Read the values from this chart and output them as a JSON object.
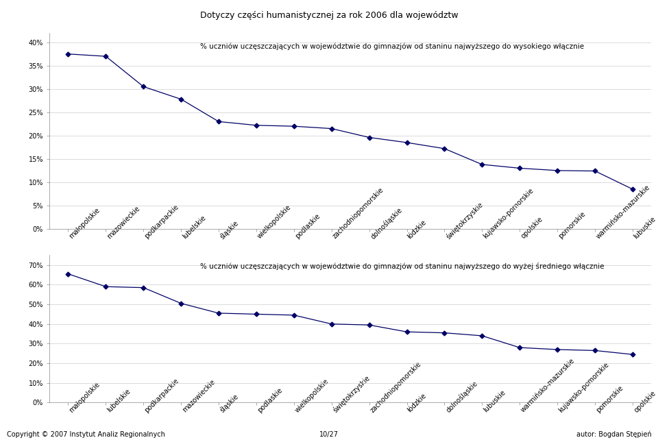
{
  "title": "Dotyczy części humanistycznej za rok 2006 dla województw",
  "chart1": {
    "label": "% uczniów uczęszczających w województwie do gimnazjów od staninu najwyższego do wysokiego włącznie",
    "categories": [
      "małopolskie",
      "mazowieckie",
      "podkarpackie",
      "lubelskie",
      "śląskie",
      "wielkopolskie",
      "podlaskie",
      "zachodniopomorskie",
      "dolnośląskie",
      "łódzkie",
      "świętokrzyskie",
      "kujawsko-pomorskie",
      "opolskie",
      "pomorskie",
      "warmińsko-mazurskie",
      "lubuskie"
    ],
    "values": [
      0.375,
      0.37,
      0.305,
      0.278,
      0.23,
      0.222,
      0.22,
      0.215,
      0.196,
      0.185,
      0.172,
      0.138,
      0.13,
      0.125,
      0.124,
      0.085
    ],
    "yticks": [
      0.0,
      0.05,
      0.1,
      0.15,
      0.2,
      0.25,
      0.3,
      0.35,
      0.4
    ],
    "ytick_labels": [
      "0%",
      "5%",
      "10%",
      "15%",
      "20%",
      "25%",
      "30%",
      "35%",
      "40%"
    ],
    "ymax": 0.42
  },
  "chart2": {
    "label": "% uczniów uczęszczających w województwie do gimnazjów od staninu najwyższego do wyżej średniego włącznie",
    "categories": [
      "małopolskie",
      "lubelskie",
      "podkarpackie",
      "mazowieckie",
      "śląskie",
      "podlaskie",
      "wielkopolskie",
      "świętokrzyskie",
      "zachodniopomorskie",
      "łódzkie",
      "dolnośląskie",
      "lubuskie",
      "warmińsko-mazurskie",
      "kujawsko-pomorskie",
      "pomorskie",
      "opolskie"
    ],
    "values": [
      0.655,
      0.59,
      0.585,
      0.505,
      0.455,
      0.45,
      0.445,
      0.4,
      0.395,
      0.36,
      0.355,
      0.34,
      0.28,
      0.27,
      0.265,
      0.245
    ],
    "yticks": [
      0.0,
      0.1,
      0.2,
      0.3,
      0.4,
      0.5,
      0.6,
      0.7
    ],
    "ytick_labels": [
      "0%",
      "10%",
      "20%",
      "30%",
      "40%",
      "50%",
      "60%",
      "70%"
    ],
    "ymax": 0.75
  },
  "line_color": "#000066",
  "marker": "D",
  "marker_size": 3.5,
  "footer_left": "Copyright © 2007 Instytut Analiz Regionalnych",
  "footer_center": "10/27",
  "footer_right": "autor: Bogdan Stępień",
  "background_color": "#ffffff",
  "grid_color": "#cccccc",
  "label_rotation": 45,
  "title_fontsize": 9,
  "tick_fontsize": 7,
  "label_fontsize": 7,
  "annotation_fontsize": 7.5
}
